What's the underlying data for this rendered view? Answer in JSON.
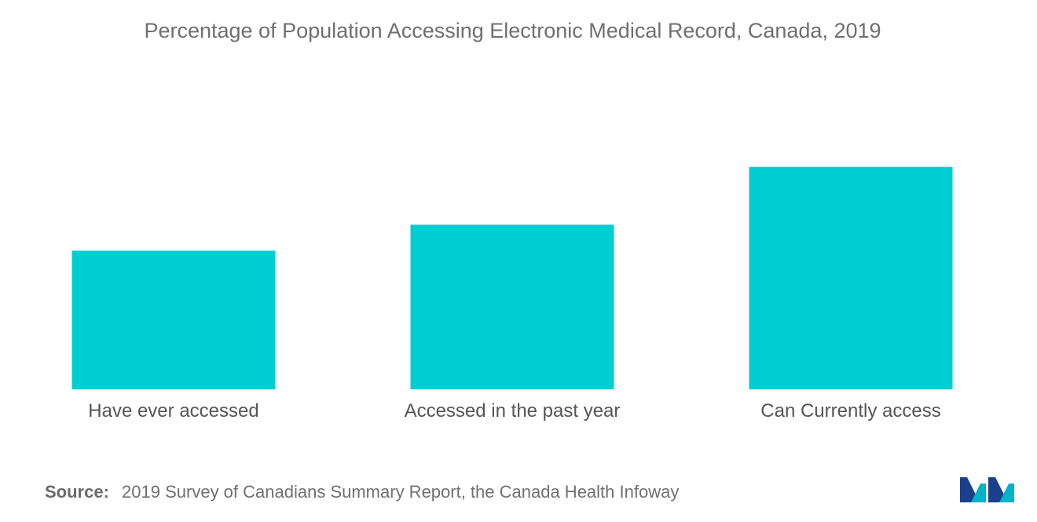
{
  "chart_data": {
    "type": "bar",
    "title": "Percentage of Population Accessing Electronic Medical Record, Canada, 2019",
    "categories": [
      "Have ever accessed",
      "Accessed in the past year",
      "Can Currently access"
    ],
    "series": [
      {
        "values": [
          24,
          28.5,
          38.5
        ]
      }
    ],
    "ylim": [
      0,
      50
    ],
    "grid": false,
    "legend": "none",
    "bar_color": "#00ced1"
  },
  "source": {
    "label": "Source:",
    "text": "2019 Survey of Canadians Summary Report, the Canada Health Infoway"
  },
  "logo": {
    "icon": "mordor-intelligence-logo-icon",
    "colors": [
      "#1b3f8b",
      "#00b3c8"
    ]
  }
}
